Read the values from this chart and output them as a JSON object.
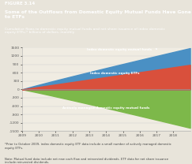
{
  "title_label": "FIGURE 3.14",
  "title": "Some of the Outflows from Domestic Equity Mutual Funds Have Gone to ETFs",
  "subtitle": "Cumulative flows to domestic equity mutual funds and net share issuance of index domestic\nequity ETFs;* billions of dollars, monthly",
  "header_bg": "#3a7f9e",
  "header_text": "#ffffff",
  "plot_bg": "#f0ece2",
  "fig_bg": "#e8e4da",
  "ylim": [
    -1500,
    1500
  ],
  "yticks": [
    -1500,
    -1200,
    -900,
    -600,
    -300,
    0,
    300,
    600,
    900,
    1200,
    1500
  ],
  "xtick_labels": [
    "2009",
    "2010",
    "2011",
    "2012",
    "2013",
    "2014",
    "2015",
    "2016",
    "2017",
    "2018"
  ],
  "color_index_mutual": "#4a90c4",
  "color_index_etf": "#d9503c",
  "color_active_managed": "#7db84a",
  "label_index_mutual": "Index domestic equity mutual funds",
  "label_index_etf": "Index domestic equity ETFs",
  "label_active": "Actively managed domestic equity mutual funds",
  "footnote1": "*Prior to October 2009, index domestic equity ETF data include a small number of actively managed domestic\nequity ETFs.",
  "footnote2": "Note: Mutual fund data include net new cash flow and reinvested dividends. ETF data for net share issuance\ninclude reinvested dividends."
}
